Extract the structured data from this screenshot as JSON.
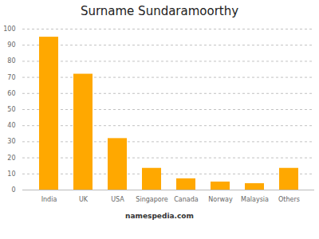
{
  "chart_data": {
    "type": "bar",
    "title": "Surname Sundaramoorthy",
    "categories": [
      "India",
      "UK",
      "USA",
      "Singapore",
      "Canada",
      "Norway",
      "Malaysia",
      "Others"
    ],
    "values": [
      95,
      72,
      32,
      13.5,
      7,
      5,
      4,
      13.5
    ],
    "color": "#FFA800",
    "ylim": [
      0,
      100
    ],
    "yticks": [
      0,
      10,
      20,
      30,
      40,
      50,
      60,
      70,
      80,
      90,
      100
    ],
    "grid": true,
    "annotations": [
      "namespedia.com"
    ]
  }
}
